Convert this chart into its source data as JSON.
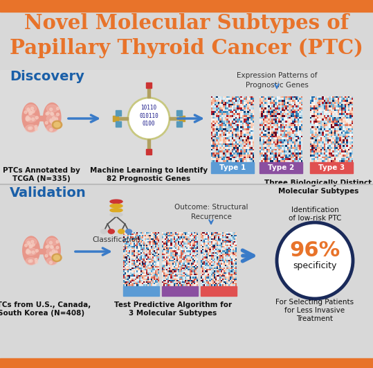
{
  "bg_color": "#e0e0e0",
  "orange_bar_color": "#E8732A",
  "title_color": "#E8732A",
  "title_line1": "Novel Molecular Subtypes of",
  "title_line2": "Papillary Thyroid Cancer (PTC)",
  "discovery_label": "Discovery",
  "validation_label": "Validation",
  "section_label_color": "#1a5fa8",
  "arrow_color": "#3a7bc8",
  "disc_bg": "#e8e8e8",
  "val_bg": "#e4e4e4",
  "type1_color": "#5b9bd5",
  "type2_color": "#8B4FA0",
  "type3_color": "#E05050",
  "circle_border_color": "#1a2a5a",
  "pct_color": "#E8732A",
  "dark_text": "#1a1a1a",
  "separator_color": "#bbbbbb"
}
